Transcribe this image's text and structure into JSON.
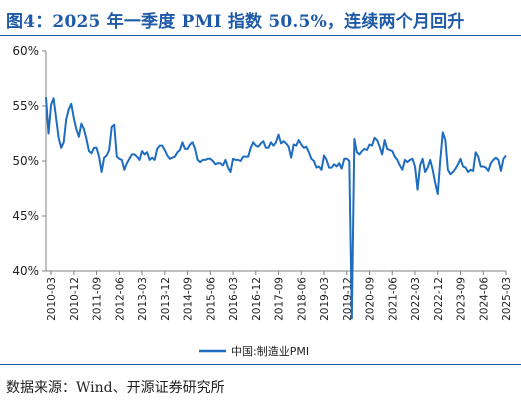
{
  "title": "图4：2025 年一季度 PMI 指数 50.5%，连续两个月回升",
  "source": "数据来源：Wind、开源证券研究所",
  "colors": {
    "line": "#1f6cc0",
    "accent": "#1f5aa8",
    "axis": "#808080"
  },
  "chart_data": {
    "type": "line",
    "x_start": "2010-01",
    "x_end": "2025-03",
    "y_unit": "%",
    "ylim": [
      40,
      60
    ],
    "yticks": [
      40,
      45,
      50,
      55,
      60
    ],
    "ytick_labels": [
      "40%",
      "45%",
      "50%",
      "55%",
      "60%"
    ],
    "x_tick_labels": [
      "2010-03",
      "2010-12",
      "2011-09",
      "2012-06",
      "2013-03",
      "2013-12",
      "2014-09",
      "2015-06",
      "2016-03",
      "2016-12",
      "2017-09",
      "2018-06",
      "2019-03",
      "2019-12",
      "2020-09",
      "2021-06",
      "2022-03",
      "2022-12",
      "2023-09",
      "2024-06",
      "2025-03"
    ],
    "grid": false,
    "legend_position": "bottom",
    "series": [
      {
        "name": "中国:制造业PMI",
        "values": [
          55.8,
          52.5,
          55.1,
          55.7,
          53.9,
          52.1,
          51.2,
          51.7,
          53.8,
          54.7,
          55.2,
          53.9,
          52.9,
          52.2,
          53.4,
          52.9,
          52.0,
          50.9,
          50.7,
          51.2,
          51.2,
          50.4,
          49.0,
          50.3,
          50.5,
          51.0,
          53.1,
          53.3,
          50.4,
          50.2,
          50.1,
          49.2,
          49.8,
          50.2,
          50.6,
          50.6,
          50.4,
          50.1,
          50.9,
          50.6,
          50.8,
          50.1,
          50.3,
          50.1,
          51.1,
          51.4,
          51.4,
          51.0,
          50.5,
          50.2,
          50.3,
          50.4,
          50.8,
          51.0,
          51.7,
          51.1,
          51.1,
          51.5,
          51.7,
          51.1,
          50.1,
          49.9,
          50.1,
          50.1,
          50.2,
          50.2,
          50.0,
          49.7,
          49.8,
          49.8,
          49.6,
          50.1,
          49.4,
          49.0,
          50.2,
          50.1,
          50.1,
          50.0,
          50.4,
          50.4,
          50.4,
          51.2,
          51.7,
          51.4,
          51.3,
          51.6,
          51.8,
          51.2,
          51.2,
          51.7,
          51.4,
          51.7,
          52.4,
          51.6,
          51.8,
          51.6,
          51.3,
          50.3,
          51.5,
          51.4,
          51.9,
          51.5,
          51.2,
          51.3,
          50.8,
          50.2,
          50.0,
          49.4,
          49.5,
          49.2,
          50.5,
          50.1,
          49.4,
          49.4,
          49.7,
          49.5,
          49.8,
          49.3,
          50.2,
          50.2,
          50.0,
          35.7,
          52.0,
          50.8,
          50.6,
          50.9,
          51.1,
          51.0,
          51.5,
          51.4,
          52.1,
          51.9,
          51.3,
          50.6,
          51.9,
          51.1,
          51.0,
          50.9,
          50.4,
          50.1,
          49.6,
          49.2,
          50.1,
          49.9,
          50.1,
          50.2,
          49.5,
          47.4,
          49.6,
          50.2,
          49.0,
          49.4,
          50.1,
          49.2,
          48.0,
          47.0,
          50.1,
          52.6,
          51.9,
          49.2,
          48.8,
          49.0,
          49.3,
          49.7,
          50.2,
          49.5,
          49.4,
          49.0,
          49.2,
          49.1,
          50.8,
          50.4,
          49.5,
          49.5,
          49.4,
          49.1,
          49.8,
          50.1,
          50.3,
          50.1,
          49.1,
          50.2,
          50.5
        ]
      }
    ]
  }
}
